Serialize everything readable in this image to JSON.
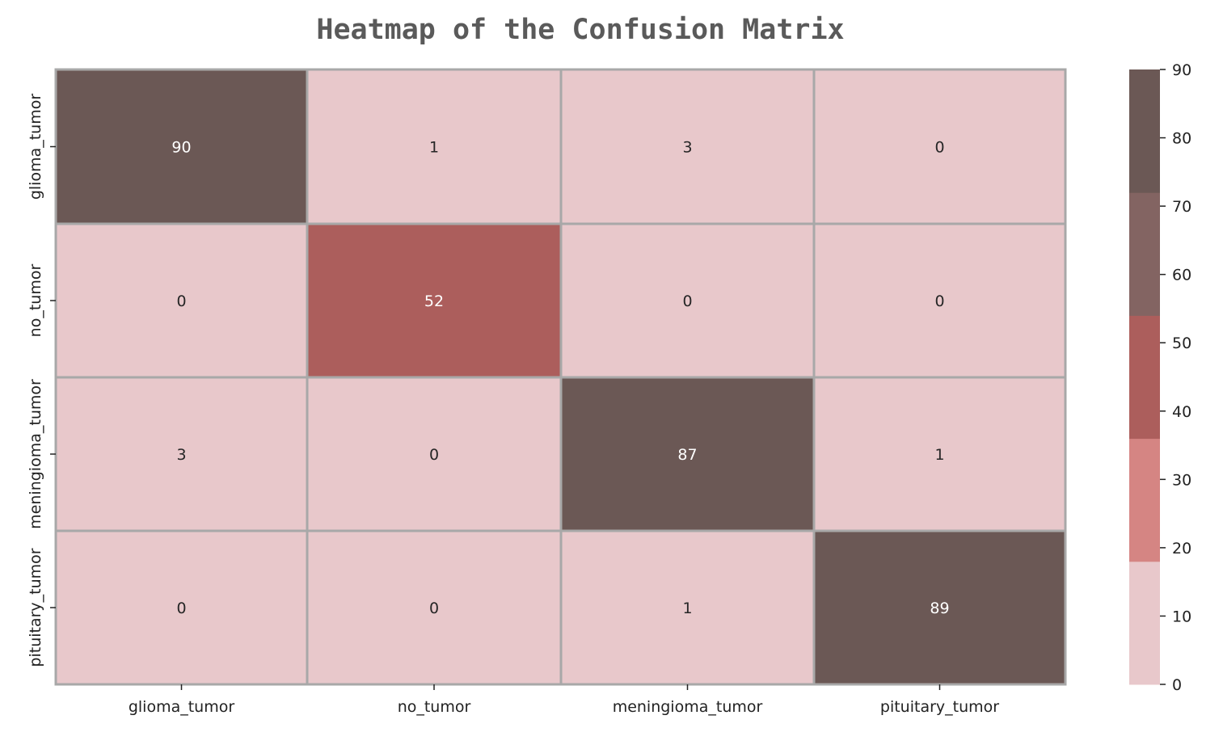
{
  "chart_data": {
    "type": "heatmap",
    "title": "Heatmap of the Confusion Matrix",
    "xlabel": "",
    "ylabel": "",
    "x_categories": [
      "glioma_tumor",
      "no_tumor",
      "meningioma_tumor",
      "pituitary_tumor"
    ],
    "y_categories": [
      "glioma_tumor",
      "no_tumor",
      "meningioma_tumor",
      "pituitary_tumor"
    ],
    "values": [
      [
        90,
        1,
        3,
        0
      ],
      [
        0,
        52,
        0,
        0
      ],
      [
        3,
        0,
        87,
        1
      ],
      [
        0,
        0,
        1,
        89
      ]
    ],
    "colorbar": {
      "range": [
        0,
        90
      ],
      "ticks": [
        0,
        10,
        20,
        30,
        40,
        50,
        60,
        70,
        80,
        90
      ],
      "colors": [
        "#e8c8cb",
        "#d58583",
        "#ac5e5c",
        "#836462",
        "#6b5855"
      ]
    },
    "grid": true,
    "gridline_color": "#a8a8a8",
    "text_colors": {
      "light_cell": "#262626",
      "dark_cell": "#ffffff"
    }
  }
}
